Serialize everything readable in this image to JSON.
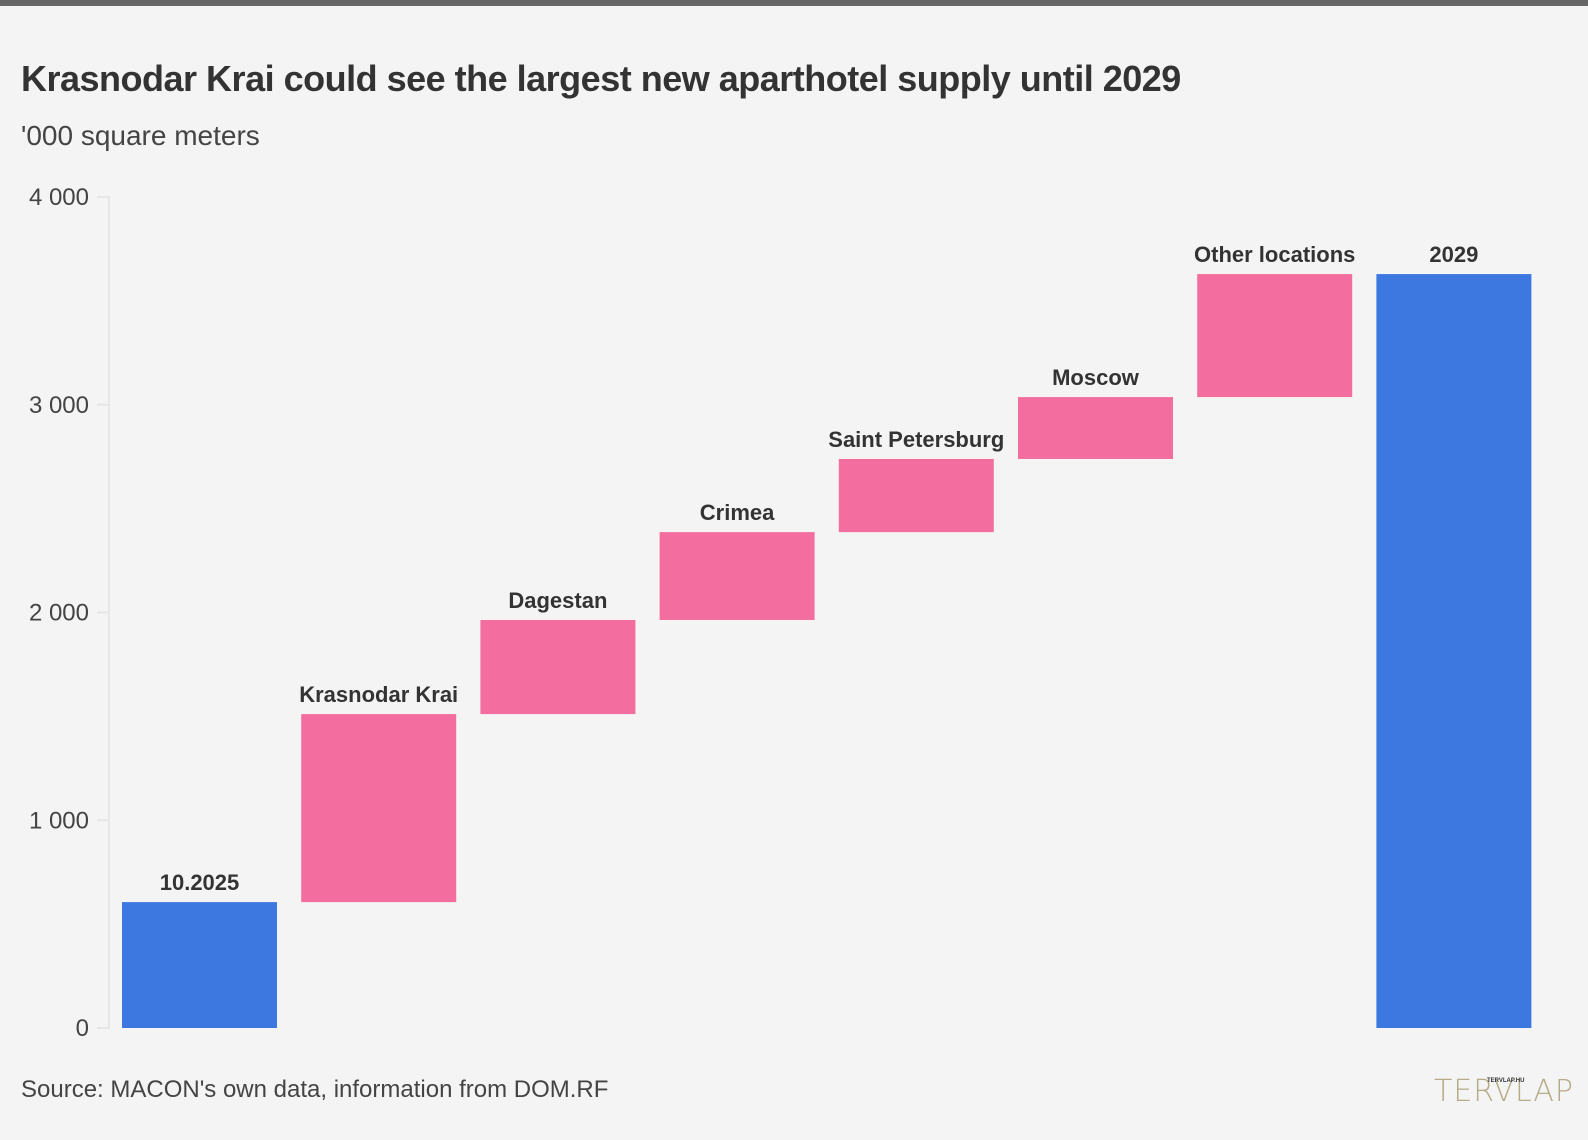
{
  "header": {
    "title": "Krasnodar Krai could see the largest new aparthotel supply until 2029",
    "subtitle": "'000 square meters"
  },
  "footer": {
    "source": "Source: MACON's own data, information from DOM.RF",
    "logo_text": "TERVLAP",
    "logo_small_text": "TERVLAP.HU"
  },
  "colors": {
    "total": "#3d78e0",
    "increase": "#f36e9e",
    "axis": "#e6e6e6",
    "text": "#333333"
  },
  "chart_data": {
    "type": "bar",
    "subtype": "waterfall",
    "title": "Krasnodar Krai could see the largest new aparthotel supply until 2029",
    "subtitle": "'000 square meters",
    "xlabel": "",
    "ylabel": "'000 square meters",
    "ylim": [
      0,
      4000
    ],
    "yticks": [
      0,
      1000,
      2000,
      3000,
      4000
    ],
    "ytick_labels": [
      "0",
      "1 000",
      "2 000",
      "3 000",
      "4 000"
    ],
    "grid": false,
    "categories": [
      "10.2025",
      "Krasnodar Krai",
      "Dagestan",
      "Crimea",
      "Saint Petersburg",
      "Moscow",
      "Other locations",
      "2029"
    ],
    "bars": [
      {
        "label": "10.2025",
        "kind": "total",
        "start": 0,
        "end": 606
      },
      {
        "label": "Krasnodar Krai",
        "kind": "increase",
        "start": 606,
        "end": 1511
      },
      {
        "label": "Dagestan",
        "kind": "increase",
        "start": 1511,
        "end": 1964
      },
      {
        "label": "Crimea",
        "kind": "increase",
        "start": 1964,
        "end": 2387
      },
      {
        "label": "Saint Petersburg",
        "kind": "increase",
        "start": 2387,
        "end": 2739
      },
      {
        "label": "Moscow",
        "kind": "increase",
        "start": 2739,
        "end": 3037
      },
      {
        "label": "Other locations",
        "kind": "increase",
        "start": 3037,
        "end": 3629
      },
      {
        "label": "2029",
        "kind": "total",
        "start": 0,
        "end": 3629
      }
    ],
    "values": [
      606,
      905,
      453,
      423,
      352,
      298,
      592,
      3629
    ],
    "source": "Source: MACON's own data, information from DOM.RF"
  }
}
